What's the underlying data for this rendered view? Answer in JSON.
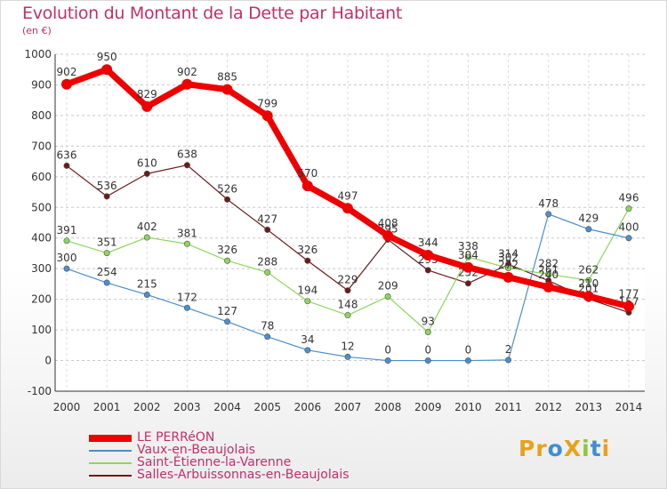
{
  "title": "Evolution du Montant de la Dette par Habitant",
  "unit": "(en €)",
  "logo": {
    "text": "ProXiti",
    "letters": [
      {
        "ch": "P",
        "color": "#e8a11c"
      },
      {
        "ch": "r",
        "color": "#e8a11c"
      },
      {
        "ch": "o",
        "color": "#3d8fd1"
      },
      {
        "ch": "X",
        "color": "#e8a11c"
      },
      {
        "ch": "i",
        "color": "#8dc63f"
      },
      {
        "ch": "t",
        "color": "#3d8fd1"
      },
      {
        "ch": "i",
        "color": "#e8a11c"
      }
    ]
  },
  "chart_data": {
    "type": "line",
    "x": [
      "2000",
      "2001",
      "2002",
      "2003",
      "2004",
      "2005",
      "2006",
      "2007",
      "2008",
      "2009",
      "2010",
      "2011",
      "2012",
      "2013",
      "2014"
    ],
    "ylim": [
      -100,
      1000
    ],
    "yticks": [
      "-100",
      "0",
      "100",
      "200",
      "300",
      "400",
      "500",
      "600",
      "700",
      "800",
      "900",
      "1000"
    ],
    "grid": "dashed horizontal",
    "legend_position": "bottom-left",
    "series": [
      {
        "name": "Salles-Arbuissonnas-en-Beaujolais",
        "color": "#6b1a1a",
        "width": 1.2,
        "values": [
          636,
          536,
          610,
          638,
          526,
          427,
          326,
          229,
          395,
          295,
          252,
          314,
          261,
          201,
          157
        ],
        "labels": [
          "636",
          "536",
          "610",
          "638",
          "526",
          "427",
          "326",
          "229",
          "395",
          "295",
          "252",
          "314",
          "261",
          "201",
          "157"
        ]
      },
      {
        "name": "Saint-Étienne-la-Varenne",
        "color": "#8dd65a",
        "width": 1.2,
        "values": [
          391,
          351,
          402,
          381,
          326,
          288,
          194,
          148,
          209,
          93,
          338,
          302,
          282,
          262,
          496
        ],
        "labels": [
          "391",
          "351",
          "402",
          "381",
          "326",
          "288",
          "194",
          "148",
          "209",
          "93",
          "338",
          "302",
          "282",
          "262",
          "496"
        ]
      },
      {
        "name": "Vaux-en-Beaujolais",
        "color": "#4a8fcf",
        "width": 1.2,
        "values": [
          300,
          254,
          215,
          172,
          127,
          78,
          34,
          12,
          0,
          0,
          0,
          2,
          478,
          429,
          400
        ],
        "labels": [
          "300",
          "254",
          "215",
          "172",
          "127",
          "78",
          "34",
          "12",
          "0",
          "0",
          "0",
          "2",
          "478",
          "429",
          "400"
        ]
      },
      {
        "name": "LE PERRéON",
        "color": "#ee0000",
        "width": 7,
        "values": [
          902,
          950,
          829,
          902,
          885,
          799,
          570,
          497,
          408,
          344,
          304,
          272,
          240,
          210,
          177
        ],
        "labels": [
          "902",
          "950",
          "829",
          "902",
          "885",
          "799",
          "570",
          "497",
          "408",
          "344",
          "304",
          "272",
          "240",
          "210",
          "177"
        ]
      }
    ]
  }
}
